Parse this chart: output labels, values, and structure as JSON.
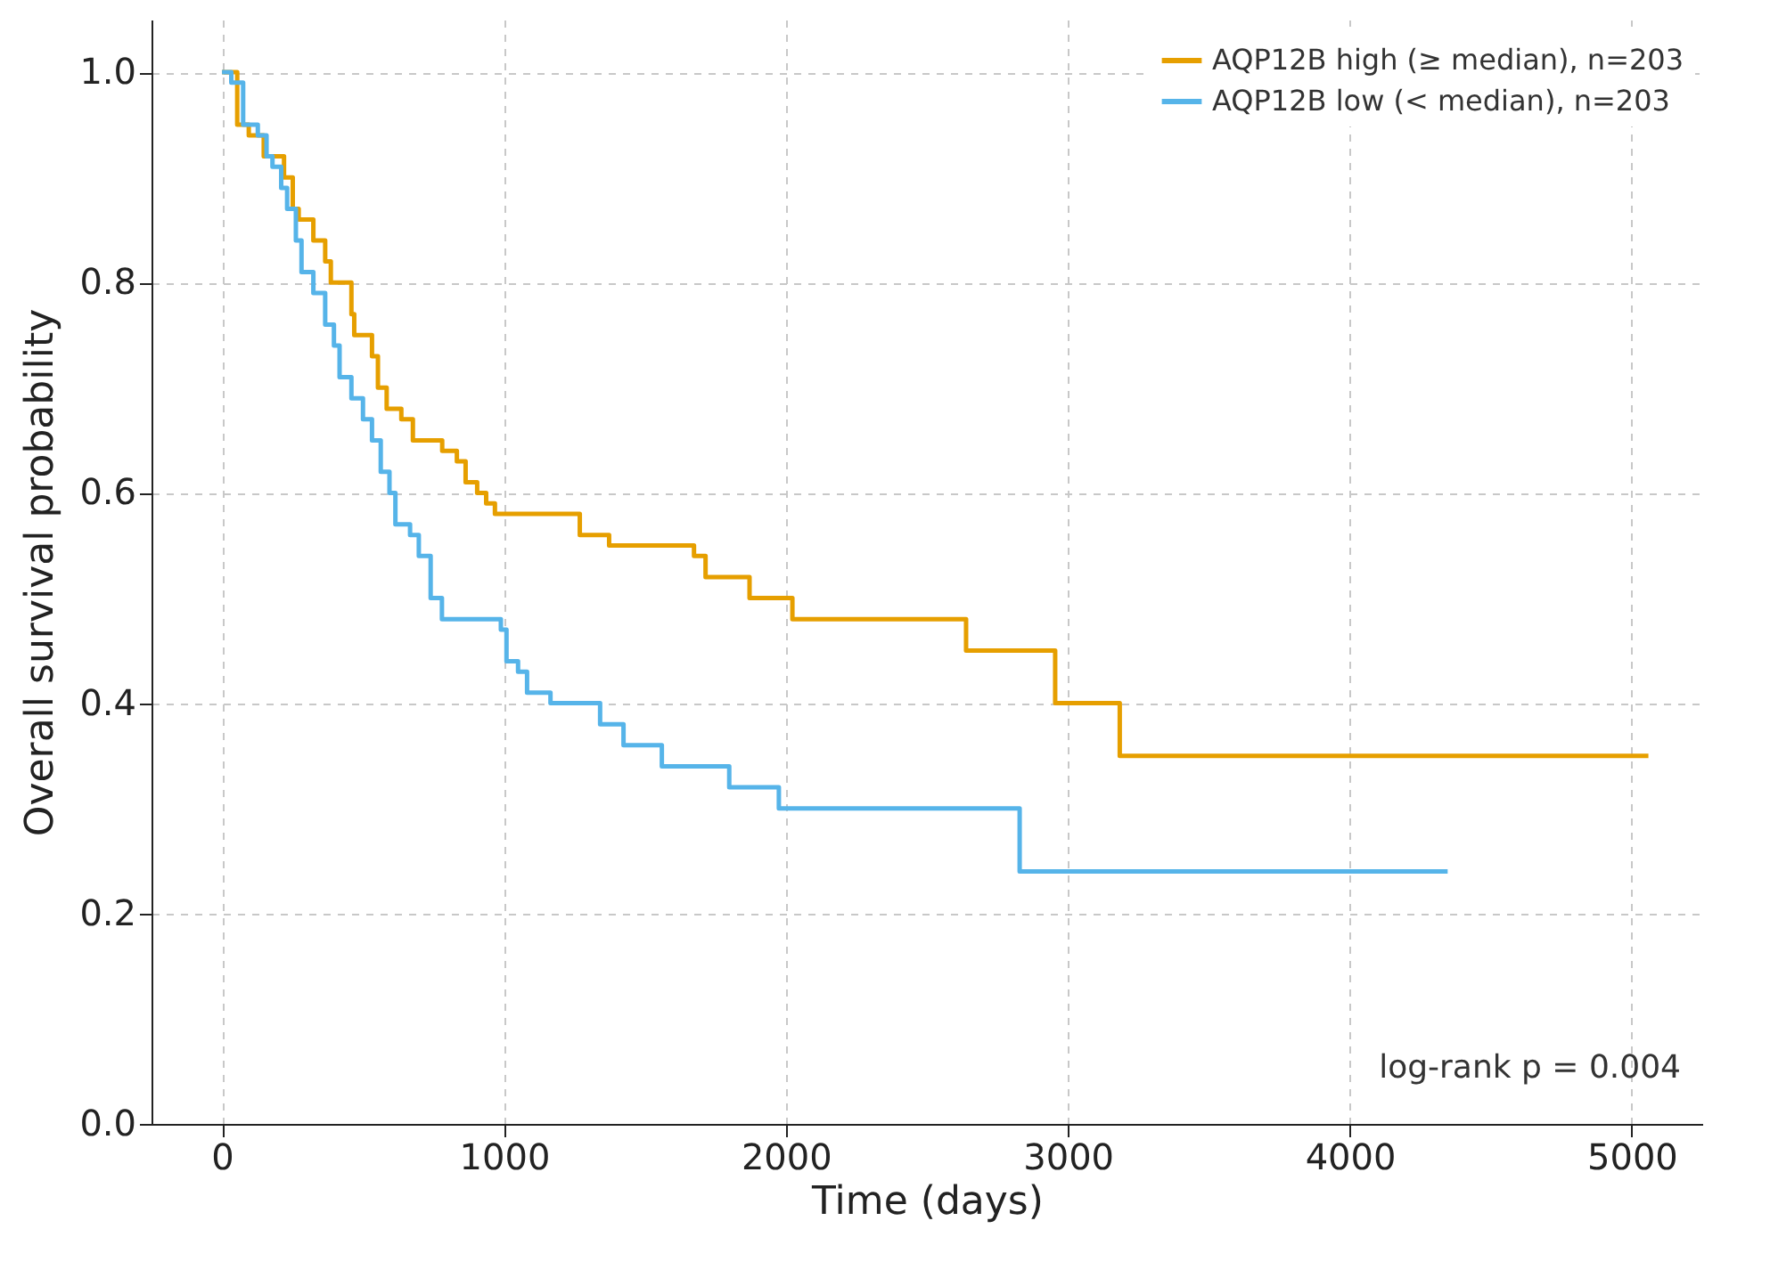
{
  "chart_data": {
    "type": "step",
    "xlabel": "Time (days)",
    "ylabel": "Overall survival probability",
    "xlim": [
      -250,
      5250
    ],
    "ylim": [
      0,
      1.05
    ],
    "xticks": [
      0,
      1000,
      2000,
      3000,
      4000,
      5000
    ],
    "yticks": [
      {
        "value": 0,
        "label": "0.0"
      },
      {
        "value": 0.2,
        "label": "0.2"
      },
      {
        "value": 0.4,
        "label": "0.4"
      },
      {
        "value": 0.6,
        "label": "0.6"
      },
      {
        "value": 0.8,
        "label": "0.8"
      },
      {
        "value": 1,
        "label": "1.0"
      }
    ],
    "grid": true,
    "legend": "top right",
    "annotations": [
      "log-rank p = 0.004"
    ],
    "series": [
      {
        "name": "AQP12B high (≥ median), n=203",
        "color": "#e69f00",
        "x": [
          0,
          54,
          95,
          148,
          220,
          251,
          272,
          324,
          366,
          386,
          459,
          469,
          532,
          553,
          584,
          636,
          677,
          781,
          833,
          864,
          905,
          937,
          968,
          1269,
          1373,
          1674,
          1715,
          1871,
          2023,
          2639,
          2955,
          3184,
          5059
        ],
        "values": [
          1.0,
          0.95,
          0.94,
          0.92,
          0.9,
          0.87,
          0.86,
          0.84,
          0.82,
          0.8,
          0.77,
          0.75,
          0.73,
          0.7,
          0.68,
          0.67,
          0.65,
          0.64,
          0.63,
          0.61,
          0.6,
          0.59,
          0.58,
          0.56,
          0.55,
          0.54,
          0.52,
          0.5,
          0.48,
          0.45,
          0.4,
          0.35,
          0.35
        ]
      },
      {
        "name": "AQP12B low (< median), n=203",
        "color": "#56b4e9",
        "x": [
          0,
          33,
          75,
          127,
          158,
          179,
          210,
          231,
          262,
          282,
          324,
          366,
          397,
          417,
          459,
          500,
          532,
          563,
          594,
          615,
          667,
          698,
          740,
          780,
          989,
          1009,
          1050,
          1082,
          1165,
          1341,
          1424,
          1560,
          1799,
          1975,
          2829,
          4347
        ],
        "values": [
          1.0,
          0.99,
          0.95,
          0.94,
          0.92,
          0.91,
          0.89,
          0.87,
          0.84,
          0.81,
          0.79,
          0.76,
          0.74,
          0.71,
          0.69,
          0.67,
          0.65,
          0.62,
          0.6,
          0.57,
          0.56,
          0.54,
          0.5,
          0.48,
          0.47,
          0.44,
          0.43,
          0.41,
          0.4,
          0.38,
          0.36,
          0.34,
          0.32,
          0.3,
          0.24,
          0.24
        ]
      }
    ]
  }
}
